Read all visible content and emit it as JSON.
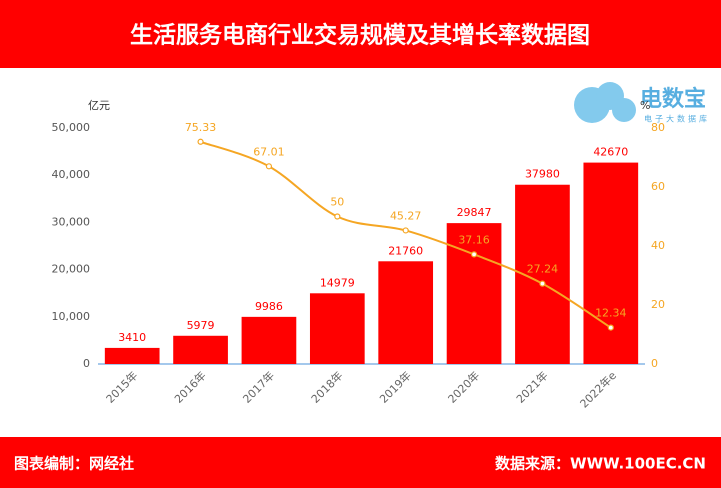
{
  "chart_data": {
    "type": "bar",
    "title": "生活服务电商行业交易规模及其增长率数据图",
    "y_label": "亿元",
    "y2_label": "%",
    "categories": [
      "2015年",
      "2016年",
      "2017年",
      "2018年",
      "2019年",
      "2020年",
      "2021年",
      "2022年e"
    ],
    "series": [
      {
        "name": "交易规模",
        "type": "bar",
        "color": "#ff0000",
        "values": [
          3410,
          5979,
          9986,
          14979,
          21760,
          29847,
          37980,
          42670
        ]
      },
      {
        "name": "增长率",
        "type": "line",
        "axis": "y2",
        "color": "#f5a623",
        "values": [
          null,
          75.33,
          67.01,
          50,
          45.27,
          37.16,
          27.24,
          12.34
        ]
      }
    ],
    "ylim": [
      0,
      50000
    ],
    "yticks": [
      0,
      {
        "value": 10000,
        "label": "10,000"
      },
      {
        "value": 20000,
        "label": "20,000"
      },
      {
        "value": 30000,
        "label": "30,000"
      },
      {
        "value": 40000,
        "label": "40,000"
      },
      {
        "value": 50000,
        "label": "50,000"
      }
    ],
    "y2lim": [
      0,
      80
    ],
    "y2ticks": [
      0,
      20,
      40,
      60,
      80
    ],
    "grid": false,
    "footer_left": "图表编制：网经社",
    "footer_right": "数据来源：WWW.100EC.CN",
    "logo": "电数宝",
    "logo_sub": "电子大数据库"
  }
}
